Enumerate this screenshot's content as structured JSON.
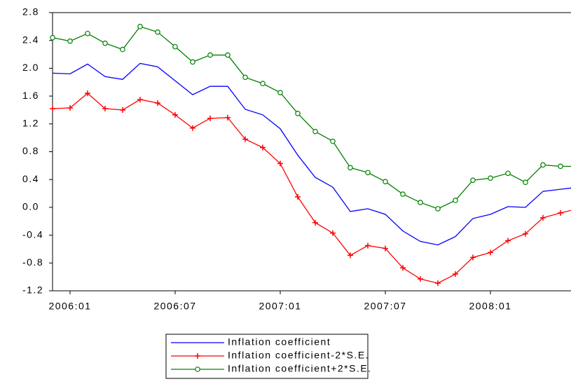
{
  "chart_data": {
    "type": "line",
    "categories": [
      null,
      "2006:01",
      null,
      null,
      null,
      null,
      null,
      "2006:07",
      null,
      null,
      null,
      null,
      null,
      "2007:01",
      null,
      null,
      null,
      null,
      null,
      "2007:07",
      null,
      null,
      null,
      null,
      null,
      "2008:01",
      null,
      null,
      null,
      null,
      null
    ],
    "series": [
      {
        "name": "Inflation coefficient",
        "color": "#0000ff",
        "marker": "none",
        "values": [
          1.93,
          1.92,
          2.06,
          1.88,
          1.84,
          2.07,
          2.02,
          1.82,
          1.62,
          1.74,
          1.74,
          1.41,
          1.33,
          1.13,
          0.75,
          0.43,
          0.29,
          -0.06,
          -0.02,
          -0.1,
          -0.34,
          -0.49,
          -0.54,
          -0.42,
          -0.16,
          -0.1,
          0.01,
          0.0,
          0.23,
          0.26,
          0.29
        ]
      },
      {
        "name": "Inflation coefficient-2*S.E.",
        "color": "#ff0000",
        "marker": "plus",
        "values": [
          1.42,
          1.43,
          1.64,
          1.42,
          1.4,
          1.55,
          1.5,
          1.33,
          1.14,
          1.28,
          1.29,
          0.98,
          0.86,
          0.63,
          0.15,
          -0.22,
          -0.37,
          -0.69,
          -0.55,
          -0.59,
          -0.87,
          -1.03,
          -1.09,
          -0.96,
          -0.72,
          -0.65,
          -0.48,
          -0.38,
          -0.15,
          -0.08,
          -0.02
        ]
      },
      {
        "name": "Inflation coefficient+2*S.E.",
        "color": "#008000",
        "marker": "circle",
        "values": [
          2.44,
          2.39,
          2.5,
          2.36,
          2.27,
          2.6,
          2.52,
          2.31,
          2.09,
          2.19,
          2.19,
          1.87,
          1.78,
          1.65,
          1.35,
          1.09,
          0.95,
          0.57,
          0.5,
          0.37,
          0.19,
          0.07,
          -0.02,
          0.1,
          0.39,
          0.42,
          0.49,
          0.36,
          0.61,
          0.59,
          0.59
        ]
      }
    ],
    "ylim": [
      -1.2,
      2.8
    ],
    "yticks": [
      -1.2,
      -0.8,
      -0.4,
      {
        "value": 0,
        "label": "0.0"
      },
      0.4,
      0.8,
      1.2,
      1.6,
      {
        "value": 2,
        "label": "2.0"
      },
      2.4,
      2.8
    ]
  }
}
